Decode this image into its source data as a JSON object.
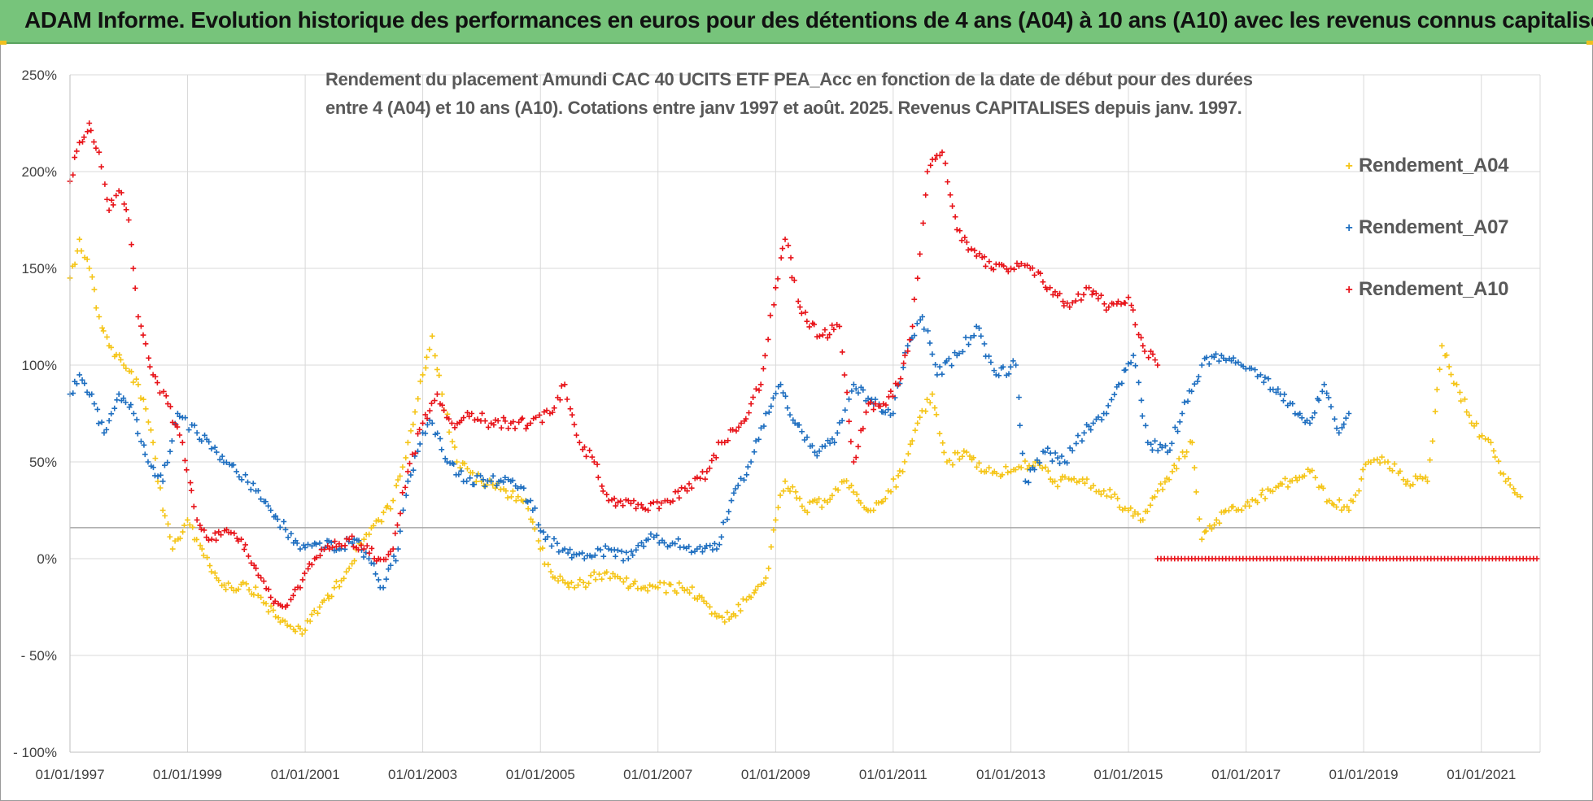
{
  "header": {
    "title": "ADAM Informe. Evolution historique des performances en euros pour des détentions de 4 ans (A04) à 10 ans (A10) avec les revenus connus capitalisés"
  },
  "chart_data": {
    "type": "scatter",
    "title_line1": "Rendement du placement Amundi CAC 40 UCITS ETF PEA_Acc en fonction de la date de début pour des durées",
    "title_line2": "entre 4 (A04) et 10 ans (A10). Cotations entre janv 1997 et août. 2025. Revenus CAPITALISES depuis janv. 1997.",
    "xlabel": "",
    "ylabel": "",
    "x_axis_type": "date",
    "xlim": [
      "1997-01-01",
      "2022-01-01"
    ],
    "ylim": [
      -100,
      250
    ],
    "y_ticks": [
      -100,
      -50,
      0,
      50,
      100,
      150,
      200,
      250
    ],
    "y_tick_labels": [
      "- 100%",
      "- 50%",
      "0%",
      "50%",
      "100%",
      "150%",
      "200%",
      "250%"
    ],
    "x_tick_labels": [
      "01/01/1997",
      "01/01/1999",
      "01/01/2001",
      "01/01/2003",
      "01/01/2005",
      "01/01/2007",
      "01/01/2009",
      "01/01/2011",
      "01/01/2013",
      "01/01/2015",
      "01/01/2017",
      "01/01/2019",
      "01/01/2021"
    ],
    "grid": true,
    "reference_line_y": 16,
    "legend_position": "right",
    "series": [
      {
        "name": "Rendement_A04",
        "color": "#f5c518",
        "marker": "+",
        "points": [
          [
            "1997-01-01",
            145
          ],
          [
            "1997-03-01",
            165
          ],
          [
            "1997-05-01",
            150
          ],
          [
            "1997-07-01",
            125
          ],
          [
            "1997-09-01",
            110
          ],
          [
            "1997-12-01",
            100
          ],
          [
            "1998-03-01",
            90
          ],
          [
            "1998-06-01",
            60
          ],
          [
            "1998-08-01",
            25
          ],
          [
            "1998-10-01",
            5
          ],
          [
            "1999-01-01",
            20
          ],
          [
            "1999-04-01",
            5
          ],
          [
            "1999-07-01",
            -10
          ],
          [
            "1999-10-01",
            -15
          ],
          [
            "2000-01-01",
            -13
          ],
          [
            "2000-04-01",
            -20
          ],
          [
            "2000-07-01",
            -30
          ],
          [
            "2000-10-01",
            -35
          ],
          [
            "2001-01-01",
            -37
          ],
          [
            "2001-04-01",
            -25
          ],
          [
            "2001-07-01",
            -15
          ],
          [
            "2001-10-01",
            -5
          ],
          [
            "2002-01-01",
            10
          ],
          [
            "2002-04-01",
            20
          ],
          [
            "2002-07-01",
            30
          ],
          [
            "2002-10-01",
            60
          ],
          [
            "2003-01-01",
            95
          ],
          [
            "2003-03-01",
            115
          ],
          [
            "2003-05-01",
            85
          ],
          [
            "2003-08-01",
            50
          ],
          [
            "2004-01-01",
            40
          ],
          [
            "2004-06-01",
            35
          ],
          [
            "2004-10-01",
            30
          ],
          [
            "2005-01-01",
            5
          ],
          [
            "2005-04-01",
            -10
          ],
          [
            "2005-08-01",
            -15
          ],
          [
            "2006-01-01",
            -8
          ],
          [
            "2006-06-01",
            -12
          ],
          [
            "2006-10-01",
            -15
          ],
          [
            "2007-01-01",
            -15
          ],
          [
            "2007-06-01",
            -15
          ],
          [
            "2007-10-01",
            -20
          ],
          [
            "2008-01-01",
            -30
          ],
          [
            "2008-04-01",
            -30
          ],
          [
            "2008-08-01",
            -20
          ],
          [
            "2008-11-01",
            -10
          ],
          [
            "2009-01-01",
            20
          ],
          [
            "2009-03-01",
            40
          ],
          [
            "2009-07-01",
            25
          ],
          [
            "2009-11-01",
            30
          ],
          [
            "2010-03-01",
            40
          ],
          [
            "2010-06-01",
            30
          ],
          [
            "2010-09-01",
            25
          ],
          [
            "2010-12-01",
            35
          ],
          [
            "2011-03-01",
            45
          ],
          [
            "2011-06-01",
            70
          ],
          [
            "2011-09-01",
            85
          ],
          [
            "2011-12-01",
            50
          ],
          [
            "2012-04-01",
            55
          ],
          [
            "2012-08-01",
            45
          ],
          [
            "2013-01-01",
            45
          ],
          [
            "2013-06-01",
            50
          ],
          [
            "2013-10-01",
            40
          ],
          [
            "2014-03-01",
            40
          ],
          [
            "2014-08-01",
            35
          ],
          [
            "2015-01-01",
            25
          ],
          [
            "2015-04-01",
            20
          ],
          [
            "2015-07-01",
            35
          ],
          [
            "2015-10-01",
            45
          ],
          [
            "2016-02-01",
            60
          ],
          [
            "2016-04-01",
            10
          ],
          [
            "2016-07-01",
            20
          ],
          [
            "2016-11-01",
            25
          ],
          [
            "2017-03-01",
            30
          ],
          [
            "2017-06-01",
            35
          ],
          [
            "2017-10-01",
            40
          ],
          [
            "2018-02-01",
            45
          ],
          [
            "2018-06-01",
            30
          ],
          [
            "2018-10-01",
            25
          ],
          [
            "2019-02-01",
            50
          ],
          [
            "2019-06-01",
            50
          ],
          [
            "2019-10-01",
            40
          ],
          [
            "2020-02-01",
            40
          ],
          [
            "2020-05-01",
            110
          ],
          [
            "2020-08-01",
            90
          ],
          [
            "2020-11-01",
            70
          ],
          [
            "2021-03-01",
            60
          ],
          [
            "2021-06-01",
            40
          ],
          [
            "2021-09-01",
            32
          ]
        ]
      },
      {
        "name": "Rendement_A07",
        "color": "#1f6fc0",
        "marker": "+",
        "points": [
          [
            "1997-01-01",
            85
          ],
          [
            "1997-03-01",
            95
          ],
          [
            "1997-06-01",
            80
          ],
          [
            "1997-08-01",
            65
          ],
          [
            "1997-11-01",
            85
          ],
          [
            "1998-02-01",
            75
          ],
          [
            "1998-05-01",
            50
          ],
          [
            "1998-08-01",
            40
          ],
          [
            "1998-11-01",
            75
          ],
          [
            "1999-03-01",
            65
          ],
          [
            "1999-07-01",
            55
          ],
          [
            "1999-11-01",
            45
          ],
          [
            "2000-03-01",
            35
          ],
          [
            "2000-06-01",
            25
          ],
          [
            "2000-09-01",
            15
          ],
          [
            "2000-12-01",
            5
          ],
          [
            "2001-04-01",
            8
          ],
          [
            "2001-08-01",
            5
          ],
          [
            "2001-11-01",
            10
          ],
          [
            "2002-02-01",
            0
          ],
          [
            "2002-05-01",
            -15
          ],
          [
            "2002-08-01",
            5
          ],
          [
            "2002-10-01",
            40
          ],
          [
            "2003-01-01",
            65
          ],
          [
            "2003-03-01",
            70
          ],
          [
            "2003-06-01",
            50
          ],
          [
            "2003-10-01",
            40
          ],
          [
            "2004-03-01",
            40
          ],
          [
            "2004-07-01",
            40
          ],
          [
            "2004-11-01",
            30
          ],
          [
            "2005-02-01",
            10
          ],
          [
            "2005-06-01",
            5
          ],
          [
            "2005-10-01",
            0
          ],
          [
            "2006-03-01",
            5
          ],
          [
            "2006-07-01",
            0
          ],
          [
            "2006-11-01",
            10
          ],
          [
            "2007-04-01",
            8
          ],
          [
            "2007-09-01",
            5
          ],
          [
            "2008-01-01",
            5
          ],
          [
            "2008-04-01",
            30
          ],
          [
            "2008-08-01",
            50
          ],
          [
            "2008-11-01",
            75
          ],
          [
            "2009-02-01",
            90
          ],
          [
            "2009-05-01",
            70
          ],
          [
            "2009-09-01",
            55
          ],
          [
            "2010-01-01",
            60
          ],
          [
            "2010-05-01",
            90
          ],
          [
            "2010-09-01",
            80
          ],
          [
            "2011-01-01",
            75
          ],
          [
            "2011-04-01",
            110
          ],
          [
            "2011-07-01",
            125
          ],
          [
            "2011-10-01",
            95
          ],
          [
            "2012-02-01",
            105
          ],
          [
            "2012-06-01",
            120
          ],
          [
            "2012-10-01",
            95
          ],
          [
            "2013-02-01",
            100
          ],
          [
            "2013-04-01",
            40
          ],
          [
            "2013-08-01",
            55
          ],
          [
            "2013-12-01",
            50
          ],
          [
            "2014-04-01",
            65
          ],
          [
            "2014-08-01",
            75
          ],
          [
            "2014-11-01",
            90
          ],
          [
            "2015-02-01",
            105
          ],
          [
            "2015-05-01",
            60
          ],
          [
            "2015-09-01",
            55
          ],
          [
            "2015-12-01",
            75
          ],
          [
            "2016-04-01",
            100
          ],
          [
            "2016-08-01",
            105
          ],
          [
            "2016-12-01",
            100
          ],
          [
            "2017-04-01",
            95
          ],
          [
            "2017-08-01",
            85
          ],
          [
            "2017-12-01",
            75
          ],
          [
            "2018-02-01",
            70
          ],
          [
            "2018-05-01",
            90
          ],
          [
            "2018-08-01",
            65
          ],
          [
            "2018-10-01",
            75
          ]
        ]
      },
      {
        "name": "Rendement_A10",
        "color": "#e8141a",
        "marker": "+",
        "points": [
          [
            "1997-01-01",
            195
          ],
          [
            "1997-03-01",
            215
          ],
          [
            "1997-05-01",
            225
          ],
          [
            "1997-07-01",
            210
          ],
          [
            "1997-09-01",
            180
          ],
          [
            "1997-11-01",
            190
          ],
          [
            "1998-01-01",
            175
          ],
          [
            "1998-03-01",
            125
          ],
          [
            "1998-06-01",
            95
          ],
          [
            "1998-09-01",
            80
          ],
          [
            "1998-12-01",
            60
          ],
          [
            "1999-03-01",
            20
          ],
          [
            "1999-06-01",
            10
          ],
          [
            "1999-09-01",
            15
          ],
          [
            "1999-12-01",
            10
          ],
          [
            "2000-03-01",
            -5
          ],
          [
            "2000-06-01",
            -20
          ],
          [
            "2000-09-01",
            -25
          ],
          [
            "2000-12-01",
            -15
          ],
          [
            "2001-03-01",
            0
          ],
          [
            "2001-06-01",
            5
          ],
          [
            "2001-10-01",
            10
          ],
          [
            "2002-01-01",
            5
          ],
          [
            "2002-04-01",
            0
          ],
          [
            "2002-07-01",
            5
          ],
          [
            "2002-10-01",
            45
          ],
          [
            "2003-01-01",
            70
          ],
          [
            "2003-04-01",
            85
          ],
          [
            "2003-07-01",
            70
          ],
          [
            "2003-11-01",
            75
          ],
          [
            "2004-03-01",
            70
          ],
          [
            "2004-07-01",
            70
          ],
          [
            "2004-11-01",
            70
          ],
          [
            "2005-03-01",
            75
          ],
          [
            "2005-06-01",
            90
          ],
          [
            "2005-09-01",
            60
          ],
          [
            "2005-12-01",
            50
          ],
          [
            "2006-03-01",
            30
          ],
          [
            "2006-07-01",
            30
          ],
          [
            "2006-11-01",
            25
          ],
          [
            "2007-03-01",
            30
          ],
          [
            "2007-07-01",
            35
          ],
          [
            "2007-11-01",
            45
          ],
          [
            "2008-02-01",
            60
          ],
          [
            "2008-06-01",
            70
          ],
          [
            "2008-10-01",
            90
          ],
          [
            "2009-01-01",
            140
          ],
          [
            "2009-03-01",
            165
          ],
          [
            "2009-06-01",
            130
          ],
          [
            "2009-10-01",
            115
          ],
          [
            "2010-02-01",
            120
          ],
          [
            "2010-05-01",
            50
          ],
          [
            "2010-08-01",
            80
          ],
          [
            "2010-11-01",
            80
          ],
          [
            "2011-02-01",
            90
          ],
          [
            "2011-05-01",
            120
          ],
          [
            "2011-08-01",
            200
          ],
          [
            "2011-11-01",
            210
          ],
          [
            "2012-02-01",
            170
          ],
          [
            "2012-05-01",
            160
          ],
          [
            "2012-09-01",
            150
          ],
          [
            "2013-01-01",
            150
          ],
          [
            "2013-05-01",
            150
          ],
          [
            "2013-09-01",
            140
          ],
          [
            "2014-01-01",
            130
          ],
          [
            "2014-05-01",
            140
          ],
          [
            "2014-09-01",
            130
          ],
          [
            "2015-01-01",
            135
          ],
          [
            "2015-04-01",
            110
          ],
          [
            "2015-07-01",
            100
          ]
        ],
        "zero_segment": {
          "start": "2015-07-01",
          "end": "2022-01-01",
          "value": 0
        }
      }
    ]
  }
}
